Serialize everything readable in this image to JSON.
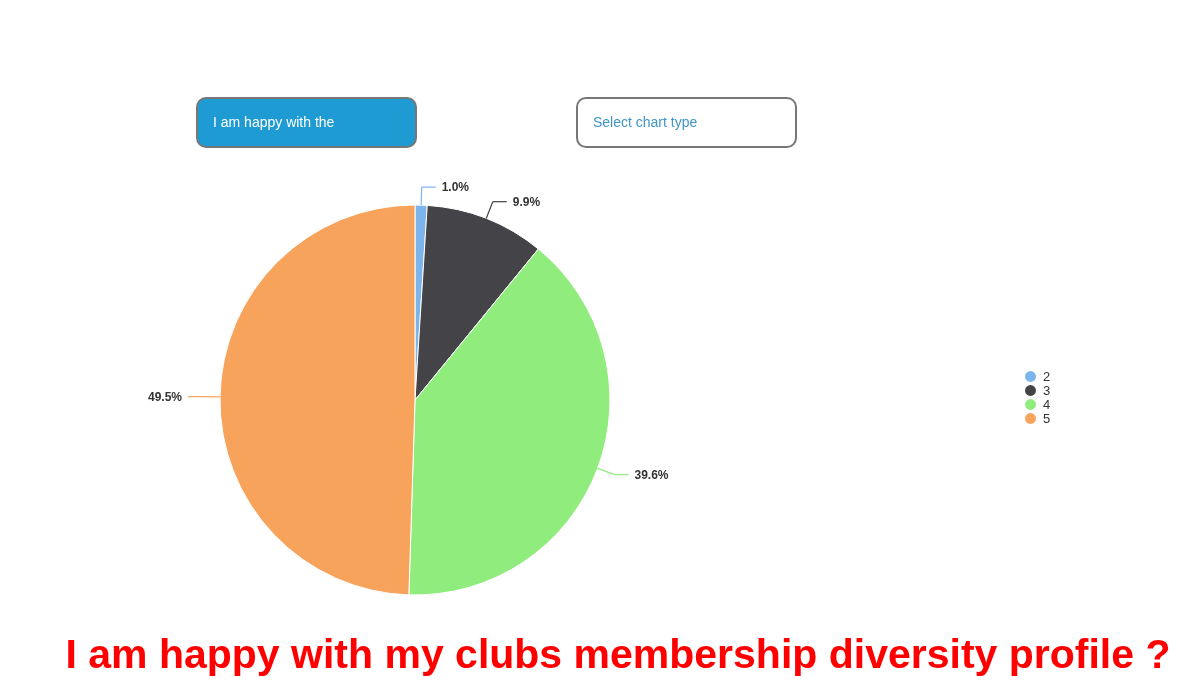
{
  "chart_data": {
    "type": "pie",
    "title": "I am happy with my clubs membership diversity profile ?",
    "categories": [
      "2",
      "3",
      "4",
      "5"
    ],
    "values": [
      1.0,
      9.9,
      39.6,
      49.5
    ],
    "colors": [
      "#7cb5ec",
      "#434348",
      "#90ed7d",
      "#f7a35c"
    ],
    "value_labels": [
      "1.0%",
      "9.9%",
      "39.6%",
      "49.5%"
    ],
    "legend": "right",
    "annotations": [
      "I am happy with the",
      "Select chart type"
    ]
  }
}
